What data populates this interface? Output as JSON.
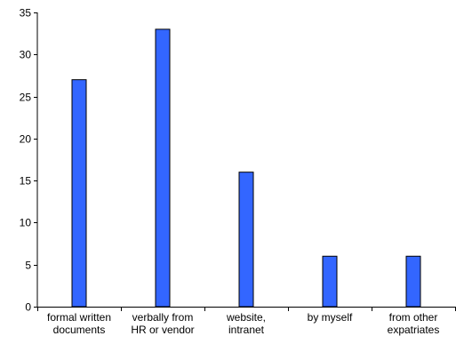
{
  "chart_data": {
    "type": "bar",
    "categories": [
      [
        "formal written",
        "documents"
      ],
      [
        "verbally from",
        "HR or vendor"
      ],
      [
        "website,",
        "intranet"
      ],
      [
        "by myself"
      ],
      [
        "from other",
        "expatriates"
      ]
    ],
    "values": [
      27,
      33,
      16,
      6,
      6
    ],
    "ylim": [
      0,
      35
    ],
    "yticks": [
      0,
      5,
      10,
      15,
      20,
      25,
      30,
      35
    ],
    "grid": false,
    "legend": "none",
    "bar_color": "#3366FF",
    "bar_edge_color": "#000000",
    "axis_color": "#000000"
  }
}
